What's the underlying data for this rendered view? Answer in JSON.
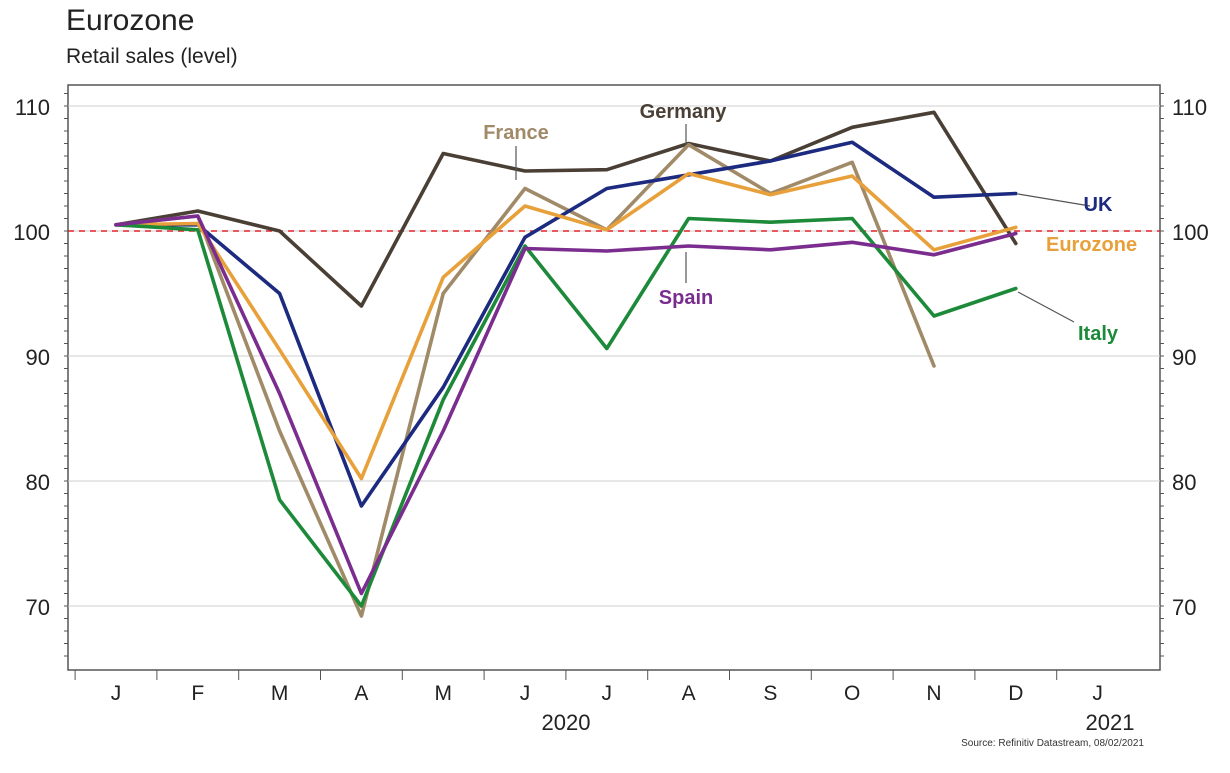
{
  "title": "Eurozone",
  "subtitle": "Retail sales (level)",
  "source": "Source: Refinitiv Datastream, 08/02/2021",
  "chart_data": {
    "type": "line",
    "title": "Eurozone",
    "subtitle": "Retail sales (level)",
    "x": [
      "Jan 2020",
      "Feb 2020",
      "Mar 2020",
      "Apr 2020",
      "May 2020",
      "Jun 2020",
      "Jul 2020",
      "Aug 2020",
      "Sep 2020",
      "Oct 2020",
      "Nov 2020",
      "Dec 2020"
    ],
    "tick_labels": [
      "J",
      "F",
      "M",
      "A",
      "M",
      "J",
      "J",
      "A",
      "S",
      "O",
      "N",
      "D",
      "J"
    ],
    "year_labels": [
      "2020",
      "2021"
    ],
    "ylim": [
      65,
      111
    ],
    "yticks": [
      70,
      80,
      90,
      100,
      110
    ],
    "reference_line": 100,
    "grid": true,
    "series": [
      {
        "name": "Germany",
        "color": "#4a3f35",
        "values": [
          100.5,
          101.6,
          100.0,
          94.0,
          106.2,
          104.8,
          104.9,
          107.0,
          105.6,
          108.3,
          109.5,
          99.0
        ]
      },
      {
        "name": "France",
        "color": "#a08a68",
        "values": [
          100.5,
          101.2,
          84.0,
          69.2,
          95.0,
          103.4,
          100.1,
          106.9,
          103.0,
          105.5,
          89.2,
          null
        ]
      },
      {
        "name": "UK",
        "color": "#1c2a7f",
        "values": [
          100.5,
          100.5,
          95.0,
          78.0,
          87.5,
          99.5,
          103.4,
          104.5,
          105.6,
          107.1,
          102.7,
          103.0
        ]
      },
      {
        "name": "Eurozone",
        "color": "#e8a13a",
        "values": [
          100.5,
          100.6,
          90.5,
          80.2,
          96.3,
          102.0,
          100.1,
          104.6,
          102.9,
          104.4,
          98.5,
          100.3
        ]
      },
      {
        "name": "Italy",
        "color": "#1d8a3a",
        "values": [
          100.5,
          100.1,
          78.5,
          70.0,
          86.5,
          98.8,
          90.6,
          101.0,
          100.7,
          101.0,
          93.2,
          95.4
        ]
      },
      {
        "name": "Spain",
        "color": "#7a2d8e",
        "values": [
          100.5,
          101.2,
          87.0,
          71.0,
          84.0,
          98.6,
          98.4,
          98.8,
          98.5,
          99.1,
          98.1,
          99.8
        ]
      }
    ],
    "labels": [
      {
        "text": "Germany",
        "series": "Germany",
        "color": "#4a3f35"
      },
      {
        "text": "France",
        "series": "France",
        "color": "#a08a68"
      },
      {
        "text": "UK",
        "series": "UK",
        "color": "#1c2a7f"
      },
      {
        "text": "Eurozone",
        "series": "Eurozone",
        "color": "#e8a13a"
      },
      {
        "text": "Spain",
        "series": "Spain",
        "color": "#7a2d8e"
      },
      {
        "text": "Italy",
        "series": "Italy",
        "color": "#1d8a3a"
      }
    ]
  }
}
